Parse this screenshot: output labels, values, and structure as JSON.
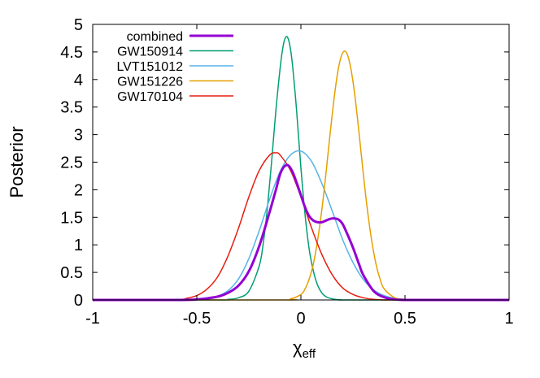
{
  "chart_data": {
    "type": "line",
    "title": "",
    "xlabel": "χ",
    "xlabel_sub": "eff",
    "ylabel": "Posterior",
    "xlim": [
      -1,
      1
    ],
    "ylim": [
      0,
      5
    ],
    "xticks": [
      "-1",
      "-0.5",
      "0",
      "0.5",
      "1"
    ],
    "xtick_values": [
      -1,
      -0.5,
      0,
      0.5,
      1
    ],
    "yticks": [
      "0",
      "0.5",
      "1",
      "1.5",
      "2",
      "2.5",
      "3",
      "3.5",
      "4",
      "4.5",
      "5"
    ],
    "ytick_values": [
      0,
      0.5,
      1,
      1.5,
      2,
      2.5,
      3,
      3.5,
      4,
      4.5,
      5
    ],
    "grid": false,
    "legend_position": "top-left",
    "series": [
      {
        "name": "combined",
        "color": "#9400d3",
        "bold": true,
        "x": [
          -1,
          -0.6,
          -0.5,
          -0.4,
          -0.35,
          -0.3,
          -0.25,
          -0.2,
          -0.15,
          -0.12,
          -0.1,
          -0.08,
          -0.06,
          -0.04,
          -0.02,
          0,
          0.02,
          0.04,
          0.06,
          0.08,
          0.1,
          0.12,
          0.14,
          0.16,
          0.18,
          0.2,
          0.22,
          0.25,
          0.28,
          0.3,
          0.35,
          0.4,
          0.45,
          0.5,
          0.55,
          1
        ],
        "y": [
          0,
          0,
          0.01,
          0.06,
          0.13,
          0.26,
          0.52,
          0.98,
          1.6,
          2.0,
          2.28,
          2.42,
          2.44,
          2.32,
          2.12,
          1.9,
          1.68,
          1.52,
          1.44,
          1.41,
          1.41,
          1.44,
          1.47,
          1.48,
          1.46,
          1.38,
          1.22,
          0.95,
          0.64,
          0.45,
          0.16,
          0.05,
          0.01,
          0,
          0,
          0
        ]
      },
      {
        "name": "GW150914",
        "color": "#009e73",
        "x": [
          -1,
          -0.4,
          -0.35,
          -0.3,
          -0.25,
          -0.2,
          -0.18,
          -0.16,
          -0.14,
          -0.12,
          -0.1,
          -0.09,
          -0.08,
          -0.07,
          -0.06,
          -0.05,
          -0.04,
          -0.03,
          -0.02,
          0,
          0.02,
          0.04,
          0.06,
          0.08,
          0.1,
          0.12,
          0.15,
          0.2,
          0.25,
          1
        ],
        "y": [
          0,
          0,
          0.01,
          0.04,
          0.16,
          0.62,
          1.05,
          1.7,
          2.55,
          3.45,
          4.2,
          4.5,
          4.7,
          4.78,
          4.73,
          4.55,
          4.25,
          3.85,
          3.4,
          2.4,
          1.55,
          0.92,
          0.52,
          0.27,
          0.13,
          0.06,
          0.02,
          0,
          0,
          0
        ]
      },
      {
        "name": "LVT151012",
        "color": "#56b4e9",
        "x": [
          -1,
          -0.5,
          -0.45,
          -0.4,
          -0.35,
          -0.3,
          -0.25,
          -0.2,
          -0.15,
          -0.1,
          -0.05,
          0,
          0.05,
          0.1,
          0.15,
          0.2,
          0.25,
          0.3,
          0.35,
          0.4,
          0.45,
          0.5,
          0.55,
          0.6,
          1
        ],
        "y": [
          0,
          0.01,
          0.03,
          0.07,
          0.17,
          0.38,
          0.75,
          1.26,
          1.83,
          2.33,
          2.63,
          2.7,
          2.52,
          2.12,
          1.62,
          1.1,
          0.68,
          0.37,
          0.18,
          0.08,
          0.03,
          0.01,
          0,
          0,
          0
        ]
      },
      {
        "name": "GW151226",
        "color": "#e69f00",
        "x": [
          -1,
          -0.1,
          -0.05,
          0,
          0.02,
          0.04,
          0.06,
          0.08,
          0.1,
          0.12,
          0.14,
          0.16,
          0.18,
          0.2,
          0.22,
          0.24,
          0.26,
          0.28,
          0.3,
          0.32,
          0.34,
          0.36,
          0.38,
          0.4,
          0.45,
          0.5,
          0.55,
          1
        ],
        "y": [
          0,
          0,
          0.02,
          0.1,
          0.2,
          0.38,
          0.66,
          1.08,
          1.62,
          2.28,
          3.0,
          3.68,
          4.2,
          4.48,
          4.48,
          4.2,
          3.68,
          3.0,
          2.28,
          1.62,
          1.08,
          0.66,
          0.38,
          0.2,
          0.04,
          0.01,
          0,
          0
        ]
      },
      {
        "name": "GW170104",
        "color": "#e51e10",
        "x": [
          -1,
          -0.6,
          -0.55,
          -0.5,
          -0.45,
          -0.4,
          -0.35,
          -0.3,
          -0.25,
          -0.2,
          -0.15,
          -0.12,
          -0.1,
          -0.05,
          0,
          0.05,
          0.1,
          0.15,
          0.2,
          0.25,
          0.3,
          0.35,
          0.4,
          0.45,
          0.5,
          1
        ],
        "y": [
          0,
          0.01,
          0.03,
          0.08,
          0.2,
          0.42,
          0.8,
          1.3,
          1.87,
          2.35,
          2.63,
          2.67,
          2.63,
          2.35,
          1.87,
          1.32,
          0.83,
          0.46,
          0.22,
          0.1,
          0.04,
          0.01,
          0,
          0,
          0,
          0
        ]
      }
    ]
  }
}
